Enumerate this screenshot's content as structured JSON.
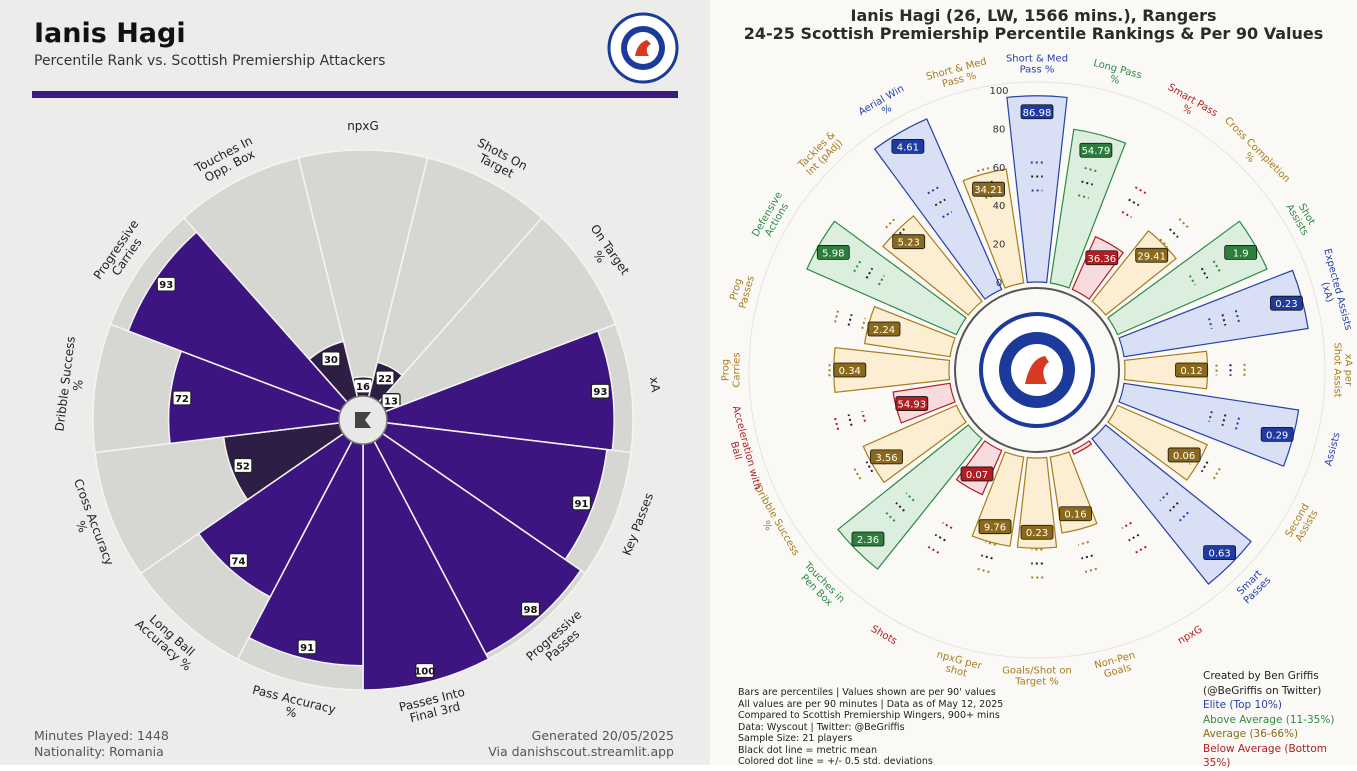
{
  "left_panel": {
    "title": "Ianis Hagi",
    "subtitle": "Percentile Rank vs. Scottish Premiership Attackers",
    "minutes": "Minutes Played: 1448",
    "nationality": "Nationality: Romania",
    "generated": "Generated 20/05/2025",
    "source": "Via danishscout.streamlit.app",
    "colors": {
      "high": "#3d1580",
      "low": "#2e1e45",
      "track": "#d6d6d3",
      "background": "#ececea"
    },
    "icons": [
      "rangers-crest-icon",
      "danishscout-logo-icon"
    ]
  },
  "right_panel": {
    "title_line1": "Ianis Hagi (26, LW, 1566 mins.), Rangers",
    "title_line2": "24-25 Scottish Premiership Percentile Rankings & Per 90 Values",
    "scale_labels": [
      "100",
      "80",
      "60",
      "40",
      "20",
      "0"
    ],
    "notes": [
      "Bars are percentiles | Values shown are per 90' values",
      "All values are per 90 minutes | Data as of May 12, 2025",
      "Compared to Scottish Premiership Wingers, 900+ mins",
      "Data: Wyscout | Twitter: @BeGriffis",
      "Sample Size: 21 players",
      "Black dot line = metric mean",
      "Colored dot line = +/- 0.5 std. deviations"
    ],
    "credits": [
      "Created by Ben Griffis",
      "(@BeGriffis on Twitter)"
    ],
    "legend": [
      {
        "label": "Elite (Top 10%)",
        "color": "#2540a8"
      },
      {
        "label": "Above Average (11-35%)",
        "color": "#2e8a45"
      },
      {
        "label": "Average (36-66%)",
        "color": "#8a6a1a"
      },
      {
        "label": "Below Average (Bottom 35%)",
        "color": "#b01e22"
      }
    ],
    "icons": [
      "rangers-crest-icon"
    ]
  },
  "chart_data": [
    {
      "type": "pizza",
      "title": "Percentile Rank vs. Scottish Premiership Attackers",
      "categories": [
        "npxG",
        "Shots On Target",
        "On Target %",
        "xA",
        "Key Passes",
        "Progressive Passes",
        "Passes Into Final 3rd",
        "Pass Accuracy %",
        "Long Ball Accuracy %",
        "Cross Accuracy %",
        "Dribble Success %",
        "Progressive Carries",
        "Touches In Opp. Box"
      ],
      "values": [
        16,
        22,
        13,
        93,
        91,
        98,
        100,
        91,
        74,
        52,
        72,
        93,
        30
      ],
      "ylim": [
        0,
        100
      ]
    },
    {
      "type": "radial_bar",
      "title": "24-25 Scottish Premiership Percentile Rankings & Per 90 Values",
      "series": [
        {
          "name": "Short & Med Pass %",
          "percentile": 97,
          "value": "86.98",
          "tier": "Elite"
        },
        {
          "name": "Long Pass %",
          "percentile": 81,
          "value": "54.79",
          "tier": "Above Average"
        },
        {
          "name": "Smart Pass %",
          "percentile": 30,
          "value": "36.36",
          "tier": "Below Average"
        },
        {
          "name": "Cross Completion %",
          "percentile": 47,
          "value": "29.41",
          "tier": "Average"
        },
        {
          "name": "Shot Assists",
          "percentile": 85,
          "value": "1.9",
          "tier": "Above Average"
        },
        {
          "name": "Expected Assists (xA)",
          "percentile": 97,
          "value": "0.23",
          "tier": "Elite"
        },
        {
          "name": "xA per Shot Assist",
          "percentile": 43,
          "value": "0.12",
          "tier": "Average"
        },
        {
          "name": "Assists",
          "percentile": 92,
          "value": "0.29",
          "tier": "Elite"
        },
        {
          "name": "Second Assists",
          "percentile": 51,
          "value": "0.06",
          "tier": "Average"
        },
        {
          "name": "Smart Passes",
          "percentile": 97,
          "value": "0.63",
          "tier": "Elite"
        },
        {
          "name": "npxG",
          "percentile": 0,
          "value": "",
          "tier": "Below Average"
        },
        {
          "name": "Non-Pen Goals",
          "percentile": 40,
          "value": "0.16",
          "tier": "Average"
        },
        {
          "name": "Goals/Shot on Target %",
          "percentile": 47,
          "value": "0.23",
          "tier": "Average"
        },
        {
          "name": "npxG per shot",
          "percentile": 47,
          "value": "9.76",
          "tier": "Average"
        },
        {
          "name": "Shots",
          "percentile": 25,
          "value": "0.07",
          "tier": "Below Average"
        },
        {
          "name": "Touches in Pen Box",
          "percentile": 87,
          "value": "2.36",
          "tier": "Above Average"
        },
        {
          "name": "Dribble Success %",
          "percentile": 53,
          "value": "3.56",
          "tier": "Average"
        },
        {
          "name": "Acceleration with Ball",
          "percentile": 30,
          "value": "54.93",
          "tier": "Below Average"
        },
        {
          "name": "Prog Carries",
          "percentile": 60,
          "value": "0.34",
          "tier": "Average"
        },
        {
          "name": "Prog Passes",
          "percentile": 45,
          "value": "2.24",
          "tier": "Average"
        },
        {
          "name": "Defensive Actions",
          "percentile": 85,
          "value": "5.98",
          "tier": "Above Average"
        },
        {
          "name": "Tackles & Int (pAdj)",
          "percentile": 57,
          "value": "5.23",
          "tier": "Average"
        },
        {
          "name": "Aerial Win %",
          "percentile": 97,
          "value": "4.61",
          "tier": "Elite"
        },
        {
          "name": "Short & Med Pass % ",
          "percentile": 60,
          "value": "34.21",
          "tier": "Average"
        }
      ],
      "ylim": [
        0,
        100
      ]
    }
  ]
}
